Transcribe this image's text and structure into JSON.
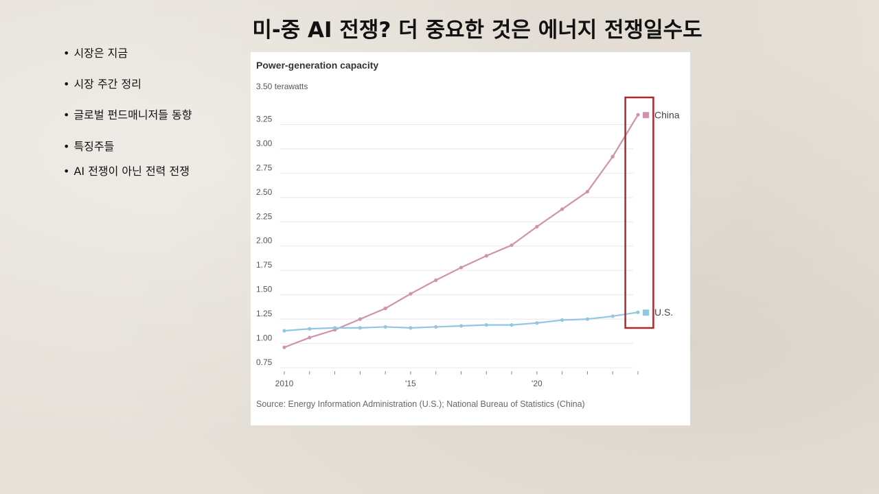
{
  "slide": {
    "title": "미-중 AI 전쟁? 더 중요한 것은 에너지 전쟁일수도",
    "bullets": [
      "시장은 지금",
      "시장 주간 정리",
      "글로벌 펀드매니저들 동향",
      "특징주들",
      "AI 전쟁이 아닌 전력 전쟁"
    ]
  },
  "chart_data": {
    "type": "line",
    "title": "Power-generation capacity",
    "unit_label": "3.50 terawatts",
    "ylim": [
      0.75,
      3.5
    ],
    "y_ticks": [
      "3.25",
      "3.00",
      "2.75",
      "2.50",
      "2.25",
      "2.00",
      "1.75",
      "1.50",
      "1.25",
      "1.00",
      "0.75"
    ],
    "y_tick_values": [
      3.25,
      3.0,
      2.75,
      2.5,
      2.25,
      2.0,
      1.75,
      1.5,
      1.25,
      1.0,
      0.75
    ],
    "x": [
      2010,
      2011,
      2012,
      2013,
      2014,
      2015,
      2016,
      2017,
      2018,
      2019,
      2020,
      2021,
      2022,
      2023,
      2024
    ],
    "x_ticks": [
      {
        "value": 2010,
        "label": "2010"
      },
      {
        "value": 2015,
        "label": "'15"
      },
      {
        "value": 2020,
        "label": "'20"
      }
    ],
    "series": [
      {
        "name": "China",
        "color": "#d291ac",
        "values": [
          0.96,
          1.06,
          1.14,
          1.25,
          1.36,
          1.51,
          1.65,
          1.78,
          1.9,
          2.01,
          2.2,
          2.38,
          2.56,
          2.92,
          3.35
        ]
      },
      {
        "name": "U.S.",
        "color": "#92c6e3",
        "values": [
          1.13,
          1.15,
          1.16,
          1.16,
          1.17,
          1.16,
          1.17,
          1.18,
          1.19,
          1.19,
          1.21,
          1.24,
          1.25,
          1.28,
          1.32
        ]
      }
    ],
    "highlight_box": {
      "x_range": [
        2023.5,
        2024.5
      ],
      "color": "#b2262f"
    },
    "grid": true,
    "legend": "right",
    "source": "Source: Energy Information Administration (U.S.); National Bureau of Statistics (China)"
  }
}
